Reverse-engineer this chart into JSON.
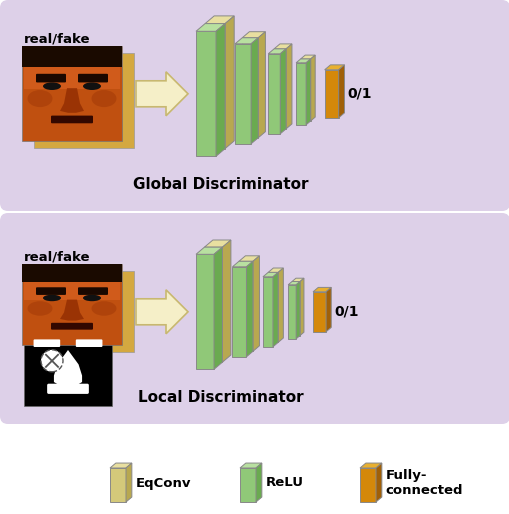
{
  "bg_color": "#ffffff",
  "panel_color": "#ddd0e8",
  "eqconv_color_face": "#d4c97a",
  "eqconv_color_side": "#b8a850",
  "eqconv_color_top": "#e8dfa0",
  "relu_color_face": "#90c878",
  "relu_color_side": "#6aaa50",
  "relu_color_top": "#b8e0a0",
  "fc_color_face": "#d4880a",
  "fc_color_side": "#a06008",
  "fc_color_top": "#e8b030",
  "arrow_color": "#f5efc8",
  "arrow_edge_color": "#c8b870",
  "title1": "Global Discriminator",
  "title2": "Local Discriminator",
  "label_real_fake": "real/fake",
  "label_01": "0/1",
  "legend_labels": [
    "EqConv",
    "ReLU",
    "Fully-\nconnected"
  ],
  "face_front_color": "#c85010",
  "face_back_color": "#8B3800",
  "face_skin_color": "#b84010"
}
